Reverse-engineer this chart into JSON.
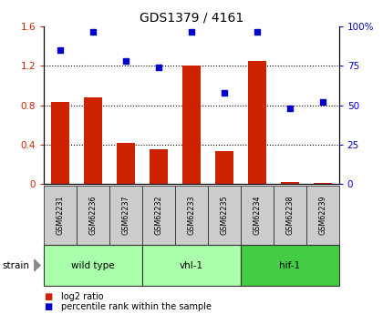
{
  "title": "GDS1379 / 4161",
  "samples": [
    "GSM62231",
    "GSM62236",
    "GSM62237",
    "GSM62232",
    "GSM62233",
    "GSM62235",
    "GSM62234",
    "GSM62238",
    "GSM62239"
  ],
  "log2_ratio": [
    0.83,
    0.88,
    0.42,
    0.35,
    1.2,
    0.33,
    1.25,
    0.02,
    0.01
  ],
  "percentile_rank": [
    85,
    97,
    78,
    74,
    97,
    58,
    97,
    48,
    52
  ],
  "groups": [
    {
      "label": "wild type",
      "start": 0,
      "end": 3,
      "color": "#aaffaa"
    },
    {
      "label": "vhl-1",
      "start": 3,
      "end": 6,
      "color": "#aaffaa"
    },
    {
      "label": "hif-1",
      "start": 6,
      "end": 9,
      "color": "#44cc44"
    }
  ],
  "bar_color": "#cc2200",
  "dot_color": "#0000cc",
  "left_ylim": [
    0,
    1.6
  ],
  "right_ylim": [
    0,
    100
  ],
  "left_yticks": [
    0,
    0.4,
    0.8,
    1.2,
    1.6
  ],
  "right_yticks": [
    0,
    25,
    50,
    75,
    100
  ],
  "right_yticklabels": [
    "0",
    "25",
    "50",
    "75",
    "100%"
  ],
  "grid_values": [
    0.4,
    0.8,
    1.2
  ],
  "bg_color": "#ffffff",
  "label_strain": "strain",
  "legend_red": "log2 ratio",
  "legend_blue": "percentile rank within the sample"
}
